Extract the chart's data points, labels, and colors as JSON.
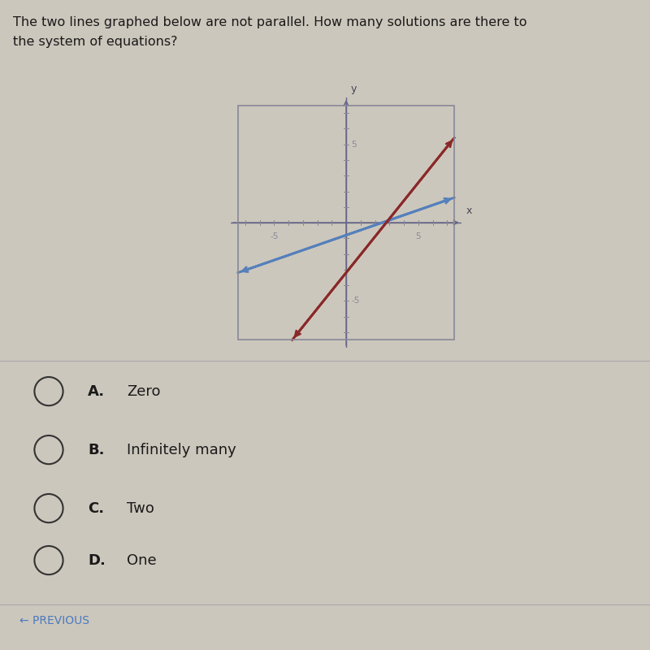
{
  "title_line1": "The two lines graphed below are not parallel. How many solutions are there to",
  "title_line2": "the system of equations?",
  "title_fontsize": 11.5,
  "background_color": "#ccc7bc",
  "graph_bg_color": "#ccc7bc",
  "xlim": [
    -8,
    8
  ],
  "ylim": [
    -8,
    8
  ],
  "blue_line": {
    "slope": 0.32,
    "intercept": -0.8,
    "color": "#5580bb",
    "lw": 2.0
  },
  "red_line": {
    "slope": 1.15,
    "intercept": -3.2,
    "color": "#8b2828",
    "lw": 2.0
  },
  "graph_bounds": [
    -7.5,
    7.5,
    -7.5,
    7.5
  ],
  "choices": [
    {
      "label": "A.",
      "text": "Zero"
    },
    {
      "label": "B.",
      "text": "Infinitely many"
    },
    {
      "label": "C.",
      "text": "Two"
    },
    {
      "label": "D.",
      "text": "One"
    }
  ],
  "choice_fontsize": 13,
  "prev_text": "← PREVIOUS",
  "prev_color": "#4a7abf",
  "prev_fontsize": 10,
  "axis_color": "#666688",
  "box_color": "#888899",
  "tick_color": "#888899",
  "label_color": "#444455"
}
